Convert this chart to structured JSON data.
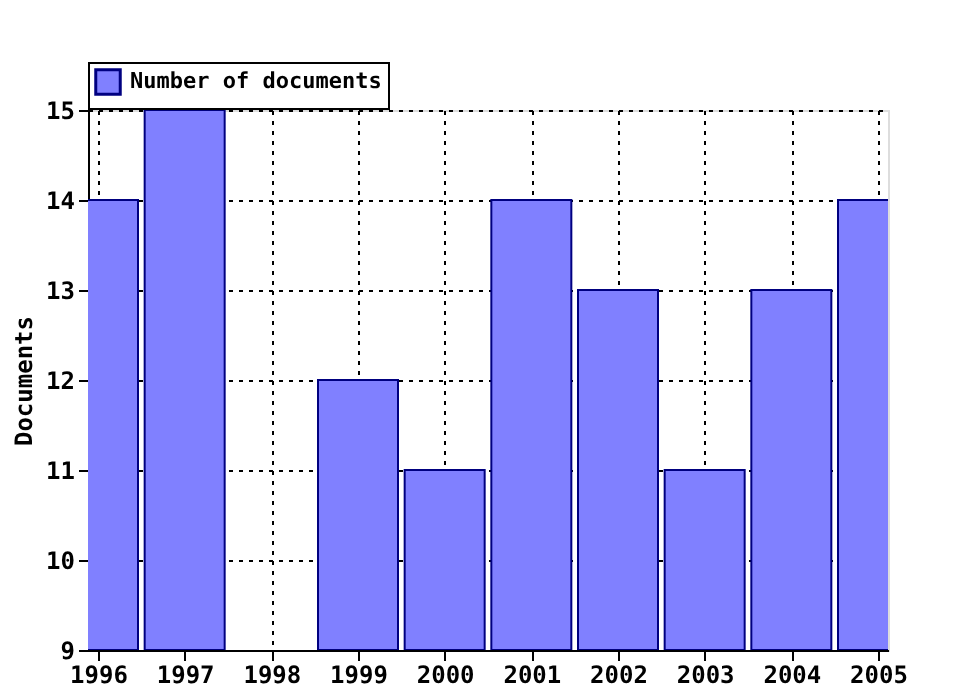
{
  "chart_data": {
    "type": "bar",
    "ylabel": "Documents",
    "x": [
      1996,
      1997,
      1998,
      1999,
      2000,
      2001,
      2002,
      2003,
      2004,
      2005
    ],
    "series": [
      {
        "name": "Number of documents",
        "color": "#8080ff",
        "values": [
          14,
          15,
          null,
          12,
          11,
          14,
          13,
          11,
          13,
          14
        ]
      }
    ],
    "xlim": [
      1996,
      2005
    ],
    "xticks": [
      1996,
      1997,
      1998,
      1999,
      2000,
      2001,
      2002,
      2003,
      2004,
      2005
    ],
    "ylim": [
      9,
      15
    ],
    "yticks": [
      9,
      10,
      11,
      12,
      13,
      14,
      15
    ],
    "grid": true,
    "legend": "top left"
  }
}
